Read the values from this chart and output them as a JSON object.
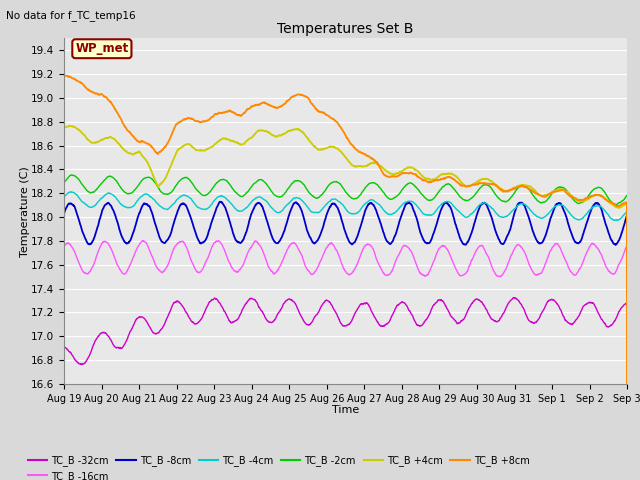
{
  "title": "Temperatures Set B",
  "subtitle": "No data for f_TC_temp16",
  "xlabel": "Time",
  "ylabel": "Temperature (C)",
  "ylim": [
    16.6,
    19.5
  ],
  "wp_met_label": "WP_met",
  "legend_entries": [
    {
      "label": "TC_B -32cm",
      "color": "#cc00cc"
    },
    {
      "label": "TC_B -16cm",
      "color": "#ff55ff"
    },
    {
      "label": "TC_B -8cm",
      "color": "#0000cc"
    },
    {
      "label": "TC_B -4cm",
      "color": "#00cccc"
    },
    {
      "label": "TC_B -2cm",
      "color": "#00cc00"
    },
    {
      "label": "TC_B +4cm",
      "color": "#cccc00"
    },
    {
      "label": "TC_B +8cm",
      "color": "#ff8800"
    }
  ],
  "xtick_labels": [
    "Aug 19",
    "Aug 20",
    "Aug 21",
    "Aug 22",
    "Aug 23",
    "Aug 24",
    "Aug 25",
    "Aug 26",
    "Aug 27",
    "Aug 28",
    "Aug 29",
    "Aug 30",
    "Aug 31",
    "Sep 1",
    "Sep 2",
    "Sep 3"
  ],
  "ytick_vals": [
    16.6,
    16.8,
    17.0,
    17.2,
    17.4,
    17.6,
    17.8,
    18.0,
    18.2,
    18.4,
    18.6,
    18.8,
    19.0,
    19.2,
    19.4
  ],
  "background_color": "#d9d9d9",
  "plot_background": "#e8e8e8",
  "grid_color": "#ffffff",
  "seed": 42
}
